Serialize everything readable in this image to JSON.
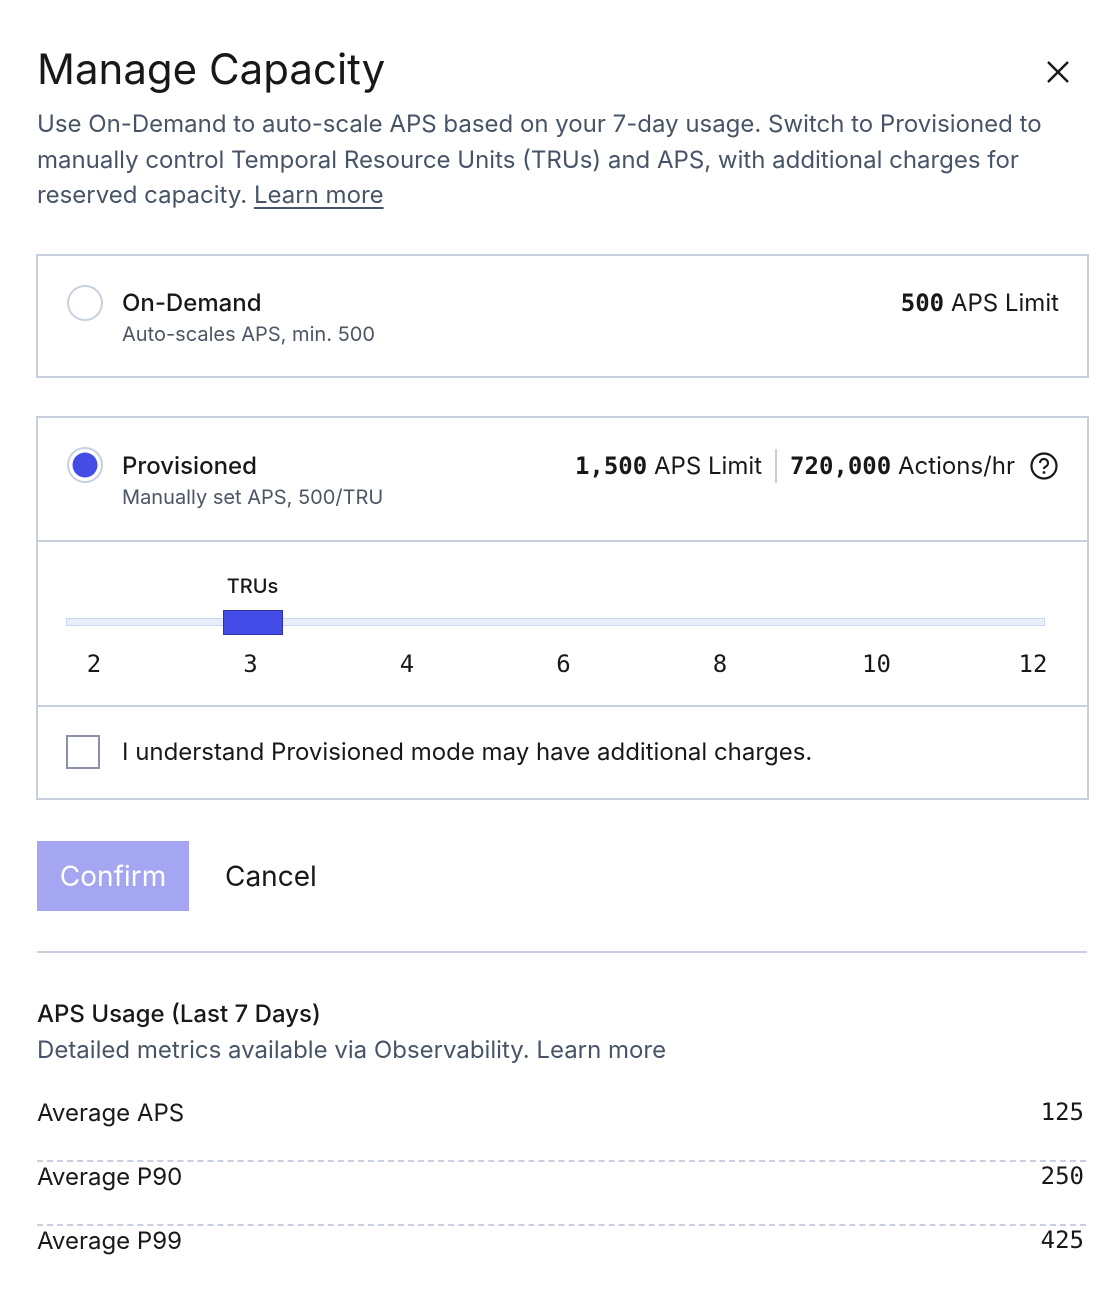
{
  "dialog": {
    "title": "Manage Capacity",
    "description": "Use On-Demand to auto-scale APS based on your 7-day usage. Switch to Provisioned to manually control Temporal Resource Units (TRUs) and APS, with additional charges for reserved capacity.",
    "description_link": "Learn more"
  },
  "options": [
    {
      "label": "On-Demand",
      "sublabel": "Auto-scales APS, min. 500",
      "limit_value": "500",
      "limit_unit": "APS Limit"
    },
    {
      "label": "Provisioned",
      "sublabel": "Manually set APS, 500/TRU",
      "limit_value": "1,500",
      "limit_unit": "APS Limit",
      "actions_value": "720,000",
      "actions_unit": "Actions/hr"
    }
  ],
  "slider": {
    "label": "TRUs",
    "ticks": [
      2,
      3,
      4,
      6,
      8,
      10,
      12
    ],
    "value": 3
  },
  "acknowledgement": "I understand Provisioned mode may have additional charges.",
  "buttons": {
    "confirm": "Confirm",
    "cancel": "Cancel"
  },
  "usage": {
    "title": "APS Usage (Last 7 Days)",
    "subtitle": "Detailed metrics available via Observability. Learn more",
    "rows": [
      [
        "Average APS",
        125
      ],
      [
        "Average P90",
        250
      ],
      [
        "Average P99",
        425
      ]
    ]
  }
}
